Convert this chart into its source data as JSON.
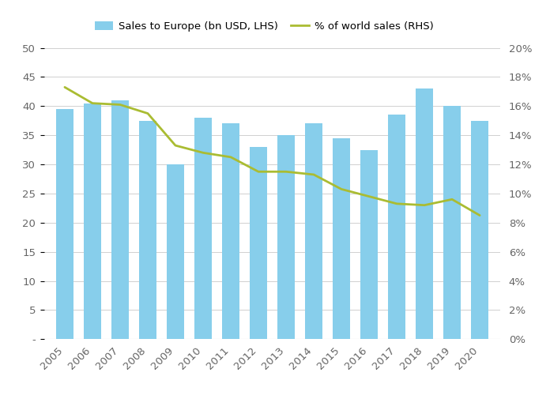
{
  "years": [
    2005,
    2006,
    2007,
    2008,
    2009,
    2010,
    2011,
    2012,
    2013,
    2014,
    2015,
    2016,
    2017,
    2018,
    2019,
    2020
  ],
  "sales_bn_usd": [
    39.5,
    40.5,
    41.0,
    37.5,
    30.0,
    38.0,
    37.0,
    33.0,
    35.0,
    37.0,
    34.5,
    32.5,
    38.5,
    43.0,
    40.0,
    37.5
  ],
  "pct_world_sales": [
    17.3,
    16.2,
    16.1,
    15.5,
    13.3,
    12.8,
    12.5,
    11.5,
    11.5,
    11.3,
    10.3,
    9.8,
    9.3,
    9.2,
    9.6,
    8.5
  ],
  "bar_color": "#87CEEB",
  "line_color": "#AABC32",
  "ylim_left": [
    0,
    50
  ],
  "ylim_right": [
    0,
    20
  ],
  "yticks_left": [
    0,
    5,
    10,
    15,
    20,
    25,
    30,
    35,
    40,
    45,
    50
  ],
  "yticks_right": [
    0,
    2,
    4,
    6,
    8,
    10,
    12,
    14,
    16,
    18,
    20
  ],
  "legend_bar_label": "Sales to Europe (bn USD, LHS)",
  "legend_line_label": "% of world sales (RHS)",
  "background_color": "#ffffff",
  "grid_color": "#d0d0d0",
  "tick_label_color": "#666666",
  "tick_fontsize": 9.5
}
